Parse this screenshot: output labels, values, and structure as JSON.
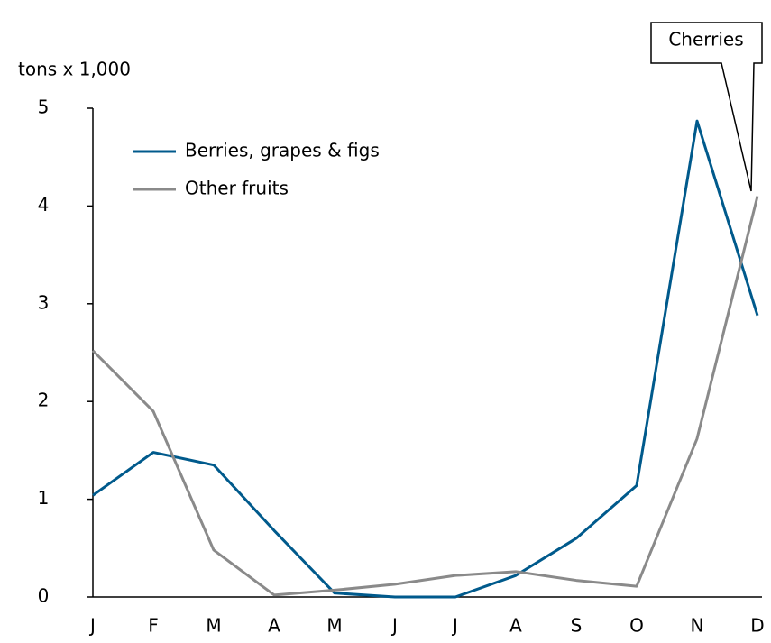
{
  "chart_data": {
    "type": "line",
    "y_label": "tons x 1,000",
    "annotation": "Cherries",
    "categories": [
      "J",
      "F",
      "M",
      "A",
      "M",
      "J",
      "J",
      "A",
      "S",
      "O",
      "N",
      "D"
    ],
    "series": [
      {
        "name": "Berries, grapes & figs",
        "color": "#005a8c",
        "values": [
          1.04,
          1.48,
          1.35,
          0.68,
          0.04,
          0.0,
          0.0,
          0.22,
          0.6,
          1.14,
          4.87,
          2.88
        ]
      },
      {
        "name": "Other fruits",
        "color": "#8a8a8a",
        "values": [
          2.52,
          1.9,
          0.48,
          0.02,
          0.07,
          0.13,
          0.22,
          0.26,
          0.17,
          0.11,
          1.62,
          4.1
        ]
      }
    ],
    "ylim": [
      0,
      5
    ],
    "yticks": [
      0,
      1,
      2,
      3,
      4,
      5
    ],
    "grid": false
  }
}
